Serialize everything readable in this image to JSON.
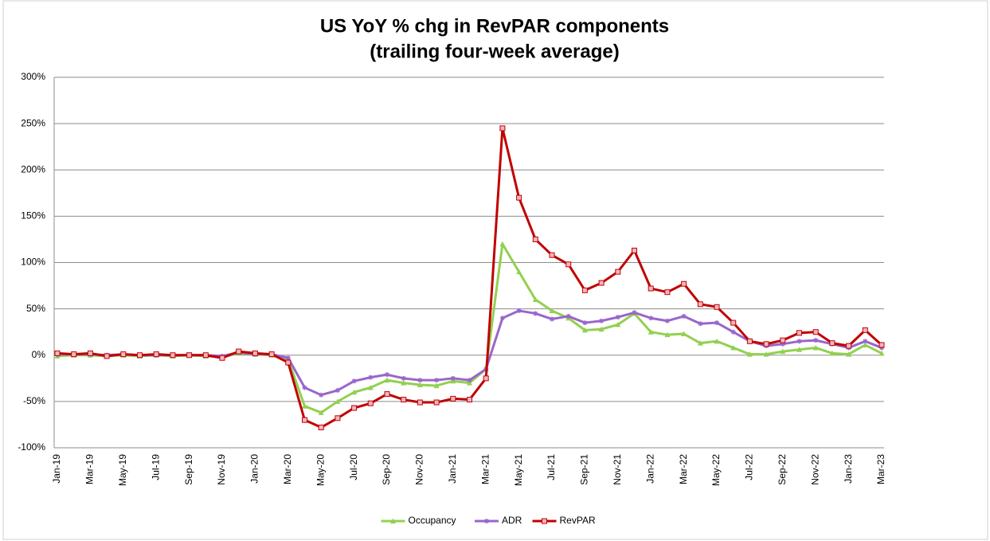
{
  "chart_data": {
    "type": "line",
    "title": "US YoY % chg in RevPAR components",
    "subtitle": "(trailing four-week average)",
    "categories": [
      "Jan-19",
      null,
      "Mar-19",
      null,
      "May-19",
      null,
      "Jul-19",
      null,
      "Sep-19",
      null,
      "Nov-19",
      null,
      "Jan-20",
      null,
      "Mar-20",
      null,
      "May-20",
      null,
      "Jul-20",
      null,
      "Sep-20",
      null,
      "Nov-20",
      null,
      "Jan-21",
      null,
      "Mar-21",
      null,
      "May-21",
      null,
      "Jul-21",
      null,
      "Sep-21",
      null,
      "Nov-21",
      null,
      "Jan-22",
      null,
      "Mar-22",
      null,
      "May-22",
      null,
      "Jul-22",
      null,
      "Sep-22",
      null,
      "Nov-22",
      null,
      "Jan-23",
      null,
      "Mar-23"
    ],
    "series": [
      {
        "name": "Occupancy",
        "color": "#92d050",
        "marker": "triangle",
        "values": [
          -1,
          0,
          0,
          -1,
          0,
          -1,
          0,
          -1,
          0,
          -1,
          -2,
          2,
          1,
          0,
          -5,
          -55,
          -62,
          -50,
          -40,
          -35,
          -27,
          -30,
          -32,
          -33,
          -28,
          -30,
          -15,
          120,
          90,
          60,
          48,
          40,
          27,
          28,
          33,
          45,
          25,
          22,
          23,
          13,
          15,
          8,
          1,
          1,
          4,
          6,
          8,
          2,
          1,
          11,
          2
        ]
      },
      {
        "name": "ADR",
        "color": "#9966cc",
        "marker": "star",
        "values": [
          1,
          1,
          1,
          0,
          1,
          0,
          0,
          0,
          0,
          0,
          -1,
          3,
          1,
          1,
          -3,
          -35,
          -43,
          -38,
          -28,
          -24,
          -21,
          -25,
          -27,
          -27,
          -25,
          -27,
          -15,
          40,
          48,
          45,
          39,
          42,
          35,
          37,
          41,
          46,
          40,
          37,
          42,
          34,
          35,
          25,
          15,
          10,
          12,
          15,
          16,
          12,
          8,
          15,
          8
        ]
      },
      {
        "name": "RevPAR",
        "color": "#c00000",
        "marker": "square",
        "values": [
          2,
          1,
          2,
          -1,
          1,
          0,
          1,
          0,
          0,
          0,
          -3,
          4,
          2,
          1,
          -8,
          -70,
          -78,
          -68,
          -57,
          -52,
          -42,
          -48,
          -51,
          -51,
          -47,
          -48,
          -25,
          245,
          170,
          125,
          108,
          98,
          70,
          78,
          90,
          113,
          72,
          68,
          77,
          55,
          52,
          35,
          15,
          12,
          16,
          24,
          25,
          13,
          10,
          27,
          11
        ]
      }
    ],
    "ylim": [
      -100,
      300
    ],
    "yticks": [
      {
        "value": -100,
        "label": "-100%"
      },
      {
        "value": -50,
        "label": "-50%"
      },
      {
        "value": 0,
        "label": "0%"
      },
      {
        "value": 50,
        "label": "50%"
      },
      {
        "value": 100,
        "label": "100%"
      },
      {
        "value": 150,
        "label": "150%"
      },
      {
        "value": 200,
        "label": "200%"
      },
      {
        "value": 250,
        "label": "250%"
      },
      {
        "value": 300,
        "label": "300%"
      }
    ],
    "grid": true,
    "legend": "bottom"
  }
}
